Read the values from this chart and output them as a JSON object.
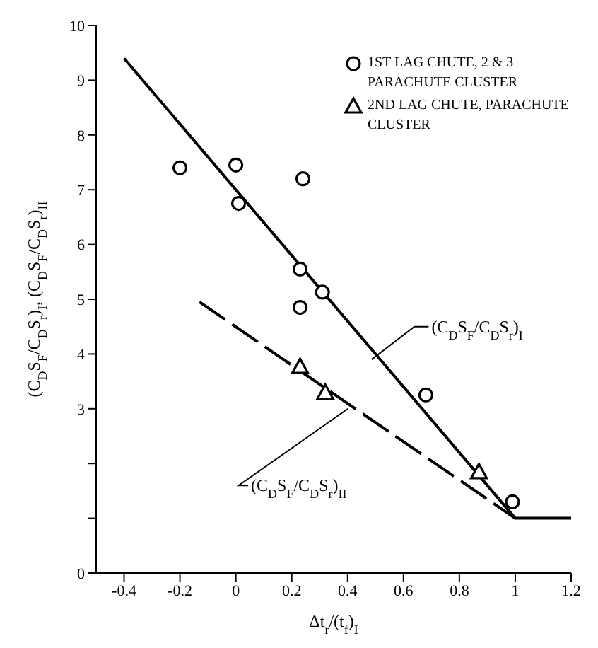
{
  "chart_data": {
    "type": "scatter",
    "xlabel": "Δt$_{r}$/(t$_{f}$)$_{I}$",
    "ylabel": "(C$_{D}$S$_{F}$/C$_{D}$S$_{r}$)$_{I}$, (C$_{D}$S$_{F}$/C$_{D}$S$_{r}$)$_{II}$",
    "xlim": [
      -0.5,
      1.2
    ],
    "xticks": [
      -0.4,
      -0.2,
      0,
      0.2,
      0.4,
      0.6,
      0.8,
      1.0,
      1.2
    ],
    "ylim": [
      0,
      10
    ],
    "yticks": [
      0,
      {
        "value": 1,
        "label": null
      },
      {
        "value": 2,
        "label": null
      },
      3,
      4,
      5,
      6,
      7,
      8,
      9,
      10
    ],
    "legend": "top right",
    "grid": false,
    "series": [
      {
        "name": "1ST LAG CHUTE, 2 & 3 PARACHUTE CLUSTER",
        "marker": "circle",
        "color": "#000000",
        "x": [
          -0.2,
          0,
          0.01,
          0.24,
          0.23,
          0.31,
          0.23,
          0.68,
          0.99
        ],
        "values": [
          7.4,
          7.45,
          6.75,
          7.2,
          5.55,
          5.13,
          4.85,
          3.25,
          1.3
        ]
      },
      {
        "name": "2ND LAG CHUTE, PARACHUTE CLUSTER",
        "marker": "triangle",
        "color": "#000000",
        "x": [
          0.23,
          0.32,
          0.87
        ],
        "values": [
          3.77,
          3.3,
          1.85
        ]
      },
      {
        "type": "line",
        "line_style": "solid",
        "marker": "none",
        "color": "#000000",
        "x": [
          -0.4,
          1.0,
          1.2
        ],
        "values": [
          9.4,
          1.0,
          1.0
        ]
      },
      {
        "type": "line",
        "line_style": "dashed",
        "marker": "none",
        "color": "#000000",
        "x": [
          -0.13,
          1.0
        ],
        "values": [
          4.95,
          1.0
        ]
      }
    ],
    "annotations": [
      "(C$_{D}$S$_{F}$/C$_{D}$S$_{r}$)$_{I}$",
      "(C$_{D}$S$_{F}$/C$_{D}$S$_{r}$)$_{II}$"
    ]
  }
}
